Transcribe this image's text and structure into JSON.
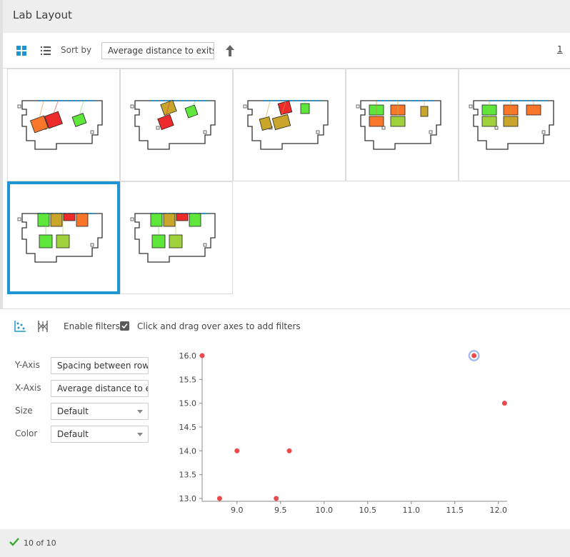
{
  "app": {
    "title": "Lab Layout"
  },
  "toolbar": {
    "sort_label": "Sort by",
    "sort_value": "Average distance to exits",
    "page": "1"
  },
  "layouts": [
    {
      "id": "L1",
      "variant": "a"
    },
    {
      "id": "L2",
      "variant": "b"
    },
    {
      "id": "L3",
      "variant": "c"
    },
    {
      "id": "L4",
      "variant": "d"
    },
    {
      "id": "L5",
      "variant": "e"
    },
    {
      "id": "L6",
      "variant": "f",
      "selected": true
    },
    {
      "id": "L7",
      "variant": "g"
    }
  ],
  "filters": {
    "enable_label": "Enable filters",
    "enabled": true,
    "hint": "Click and drag over axes to add filters"
  },
  "controls": {
    "y_axis": {
      "label": "Y-Axis",
      "value": "Spacing between rows"
    },
    "x_axis": {
      "label": "X-Axis",
      "value": "Average distance to exits"
    },
    "size": {
      "label": "Size",
      "value": "Default"
    },
    "color": {
      "label": "Color",
      "value": "Default"
    }
  },
  "colors": {
    "accent": "#1f96d3",
    "point": "#ec4b4b",
    "selected_halo": "#a8bde6",
    "check_green": "#3aa935"
  },
  "chart_data": {
    "type": "scatter",
    "xlim": [
      8.6,
      12.1
    ],
    "ylim": [
      13.0,
      16.0
    ],
    "xticks": [
      9.0,
      9.5,
      10.0,
      10.5,
      11.0,
      11.5,
      12.0
    ],
    "yticks": [
      13.0,
      13.5,
      14.0,
      14.5,
      15.0,
      15.5,
      16.0
    ],
    "points": [
      {
        "x": 8.6,
        "y": 16.0
      },
      {
        "x": 8.8,
        "y": 13.0
      },
      {
        "x": 9.0,
        "y": 14.0
      },
      {
        "x": 9.45,
        "y": 13.0
      },
      {
        "x": 9.6,
        "y": 14.0
      },
      {
        "x": 11.72,
        "y": 16.0,
        "selected": true
      },
      {
        "x": 12.07,
        "y": 15.0
      }
    ]
  },
  "status": {
    "text": "10 of 10"
  }
}
